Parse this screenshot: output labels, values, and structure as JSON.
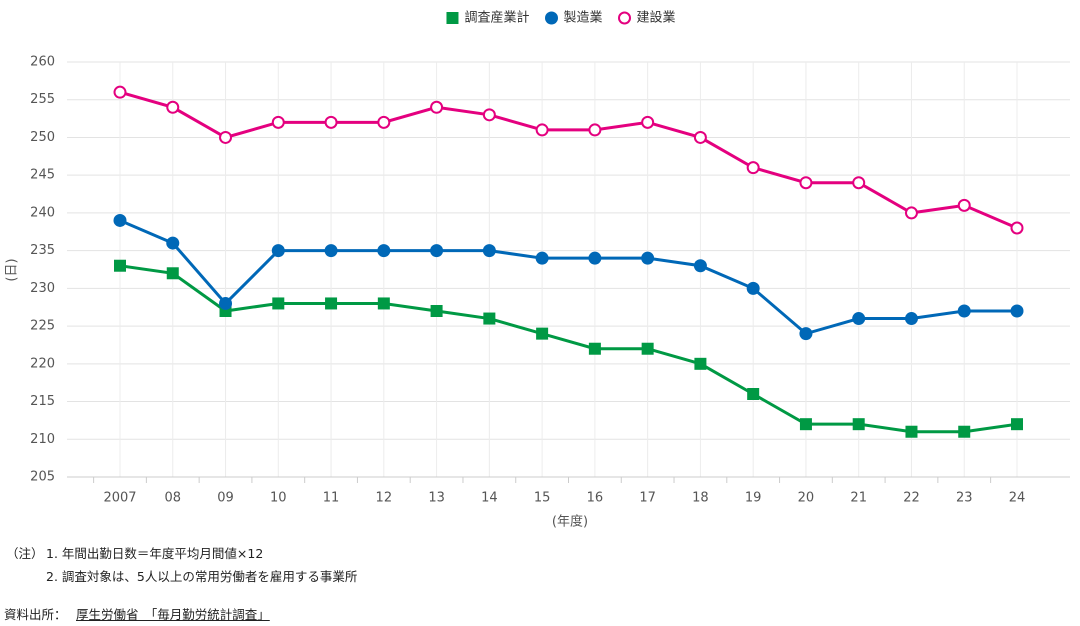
{
  "chart_data": {
    "type": "line",
    "categories": [
      "2007",
      "08",
      "09",
      "10",
      "11",
      "12",
      "13",
      "14",
      "15",
      "16",
      "17",
      "18",
      "19",
      "20",
      "21",
      "22",
      "23",
      "24"
    ],
    "series": [
      {
        "name": "調査産業計",
        "color": "#009944",
        "marker": "square",
        "values": [
          233,
          232,
          227,
          228,
          228,
          228,
          227,
          226,
          224,
          222,
          222,
          220,
          216,
          212,
          212,
          211,
          211,
          212
        ]
      },
      {
        "name": "製造業",
        "color": "#0068b7",
        "marker": "circle",
        "values": [
          239,
          236,
          228,
          235,
          235,
          235,
          235,
          235,
          234,
          234,
          234,
          233,
          230,
          224,
          226,
          226,
          227,
          227
        ]
      },
      {
        "name": "建設業",
        "color": "#e4007f",
        "marker": "open-circle",
        "values": [
          256,
          254,
          250,
          252,
          252,
          252,
          254,
          253,
          251,
          251,
          252,
          250,
          246,
          244,
          244,
          240,
          241,
          238
        ]
      }
    ],
    "ylim": [
      205,
      260
    ],
    "yticks": [
      205,
      210,
      215,
      220,
      225,
      230,
      235,
      240,
      245,
      250,
      255,
      260
    ],
    "xlabel": "(年度)",
    "ylabel": "(日)",
    "grid": true,
    "legend": "top"
  },
  "notes": {
    "prefix": "（注）",
    "items": [
      "1. 年間出勤日数＝年度平均月間値×12",
      "2. 調査対象は、5人以上の常用労働者を雇用する事業所"
    ]
  },
  "source": {
    "label": "資料出所：",
    "text": "厚生労働省　「毎月勤労統計調査」"
  }
}
